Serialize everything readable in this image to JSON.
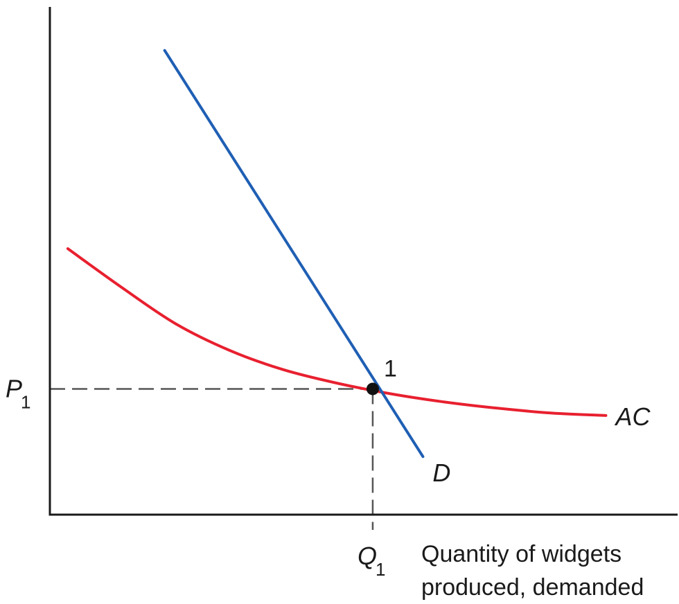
{
  "chart_data": {
    "type": "line",
    "title": "",
    "xlabel_lines": [
      "Quantity of widgets",
      "produced, demanded"
    ],
    "ylabel": "",
    "x_ticks": [
      {
        "main": "Q",
        "sub": "1"
      }
    ],
    "y_ticks": [
      {
        "main": "P",
        "sub": "1"
      }
    ],
    "grid": false,
    "colors": {
      "demand": "#1f5fb4",
      "average_cost": "#e8202f",
      "axis": "#1a1a1a",
      "guide": "#555555",
      "point": "#111111"
    },
    "series": [
      {
        "name": "D",
        "x": [
          3.2,
          10.4
        ],
        "y": [
          9.6,
          1.2
        ]
      },
      {
        "name": "AC",
        "x": [
          0.5,
          2.0,
          3.5,
          5.0,
          6.5,
          8.0,
          9.5,
          11.0,
          12.5,
          14.0,
          15.5
        ],
        "y": [
          5.5,
          4.7,
          3.95,
          3.4,
          3.0,
          2.72,
          2.5,
          2.33,
          2.2,
          2.1,
          2.05
        ]
      }
    ],
    "annotations": [
      {
        "label": "1",
        "x": 9.0,
        "y": 2.6
      }
    ],
    "xlim": [
      0,
      17.5
    ],
    "ylim": [
      0,
      10.5
    ]
  }
}
